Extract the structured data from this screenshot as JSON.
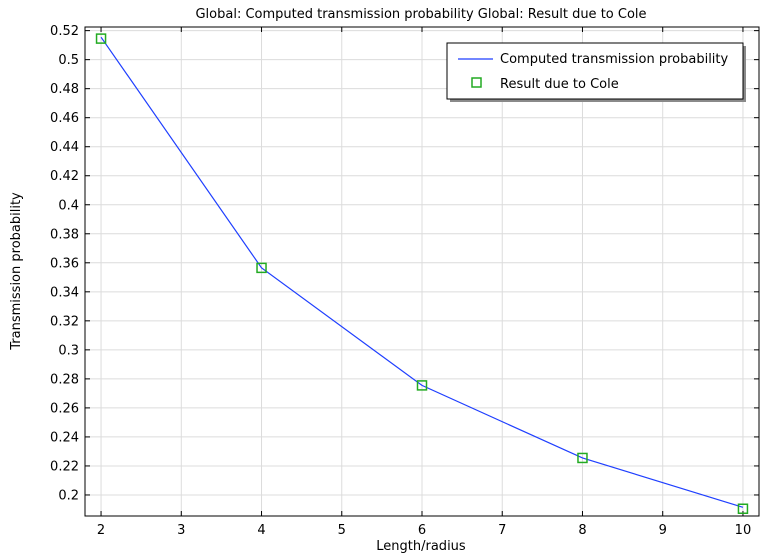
{
  "chart_data": {
    "type": "line",
    "title": "Global: Computed transmission probability  Global: Result due to Cole",
    "xlabel": "Length/radius",
    "ylabel": "Transmission probability",
    "xlim": [
      1.8,
      10.2
    ],
    "ylim": [
      0.1855,
      0.5225
    ],
    "x_ticks": [
      2,
      3,
      4,
      5,
      6,
      7,
      8,
      9,
      10
    ],
    "y_ticks": [
      0.2,
      0.22,
      0.24,
      0.26,
      0.28,
      0.3,
      0.32,
      0.34,
      0.36,
      0.38,
      0.4,
      0.42,
      0.44,
      0.46,
      0.48,
      0.5,
      0.52
    ],
    "x_tick_labels": [
      "2",
      "3",
      "4",
      "5",
      "6",
      "7",
      "8",
      "9",
      "10"
    ],
    "y_tick_labels": [
      "0.2",
      "0.22",
      "0.24",
      "0.26",
      "0.28",
      "0.3",
      "0.32",
      "0.34",
      "0.36",
      "0.38",
      "0.4",
      "0.42",
      "0.44",
      "0.46",
      "0.48",
      "0.5",
      "0.52"
    ],
    "grid": true,
    "legend_position": "top-right",
    "series": [
      {
        "name": "Computed transmission probability",
        "style": "line",
        "color": "#1f3fff",
        "x": [
          2,
          4,
          6,
          8,
          10
        ],
        "y": [
          0.5155,
          0.3565,
          0.2755,
          0.2255,
          0.1915
        ]
      },
      {
        "name": "Result due to Cole",
        "style": "square-markers",
        "color": "#22aa22",
        "x": [
          2,
          4,
          6,
          8,
          10
        ],
        "y": [
          0.5145,
          0.3565,
          0.2755,
          0.2255,
          0.1905
        ]
      }
    ]
  }
}
